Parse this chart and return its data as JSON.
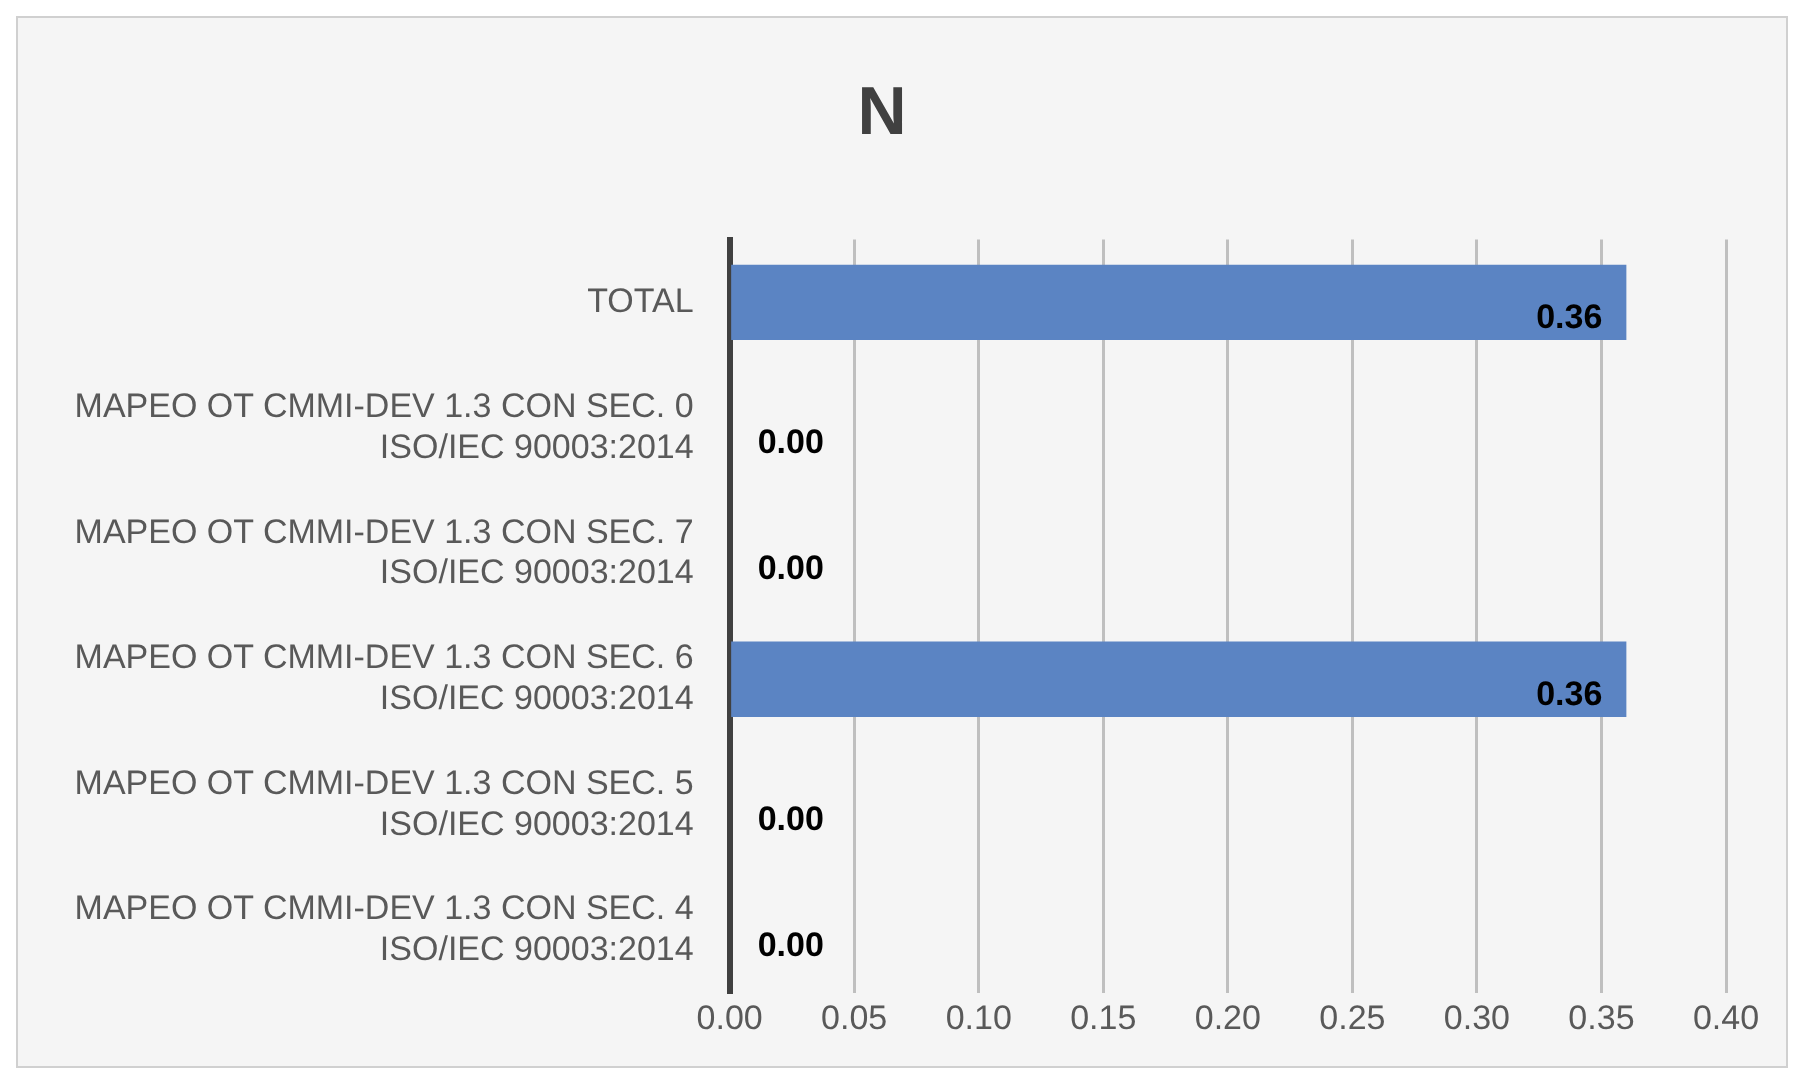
{
  "chart_data": {
    "type": "bar",
    "orientation": "horizontal",
    "title": "N",
    "categories": [
      "TOTAL",
      "MAPEO OT CMMI-DEV 1.3 CON SEC. 0\nISO/IEC 90003:2014",
      "MAPEO OT CMMI-DEV 1.3 CON SEC. 7\nISO/IEC 90003:2014",
      "MAPEO OT CMMI-DEV 1.3 CON SEC. 6\nISO/IEC 90003:2014",
      "MAPEO OT CMMI-DEV 1.3 CON SEC. 5\nISO/IEC 90003:2014",
      "MAPEO OT CMMI-DEV 1.3 CON SEC. 4\nISO/IEC 90003:2014"
    ],
    "values": [
      0.36,
      0,
      0,
      0.36,
      0,
      0
    ],
    "value_labels": [
      "0.36",
      "0.00",
      "0.00",
      "0.36",
      "0.00",
      "0.00"
    ],
    "color": "#5b84c3",
    "xlim": [
      0,
      0.4
    ],
    "xticks": [
      {
        "value": 0,
        "label": "0.00"
      },
      {
        "value": 0.05,
        "label": "0.05"
      },
      {
        "value": 0.1,
        "label": "0.10"
      },
      {
        "value": 0.15,
        "label": "0.15"
      },
      {
        "value": 0.2,
        "label": "0.20"
      },
      {
        "value": 0.25,
        "label": "0.25"
      },
      {
        "value": 0.3,
        "label": "0.30"
      },
      {
        "value": 0.35,
        "label": "0.35"
      },
      {
        "value": 0.4,
        "label": "0.40"
      }
    ],
    "grid": "x",
    "legend": false
  }
}
